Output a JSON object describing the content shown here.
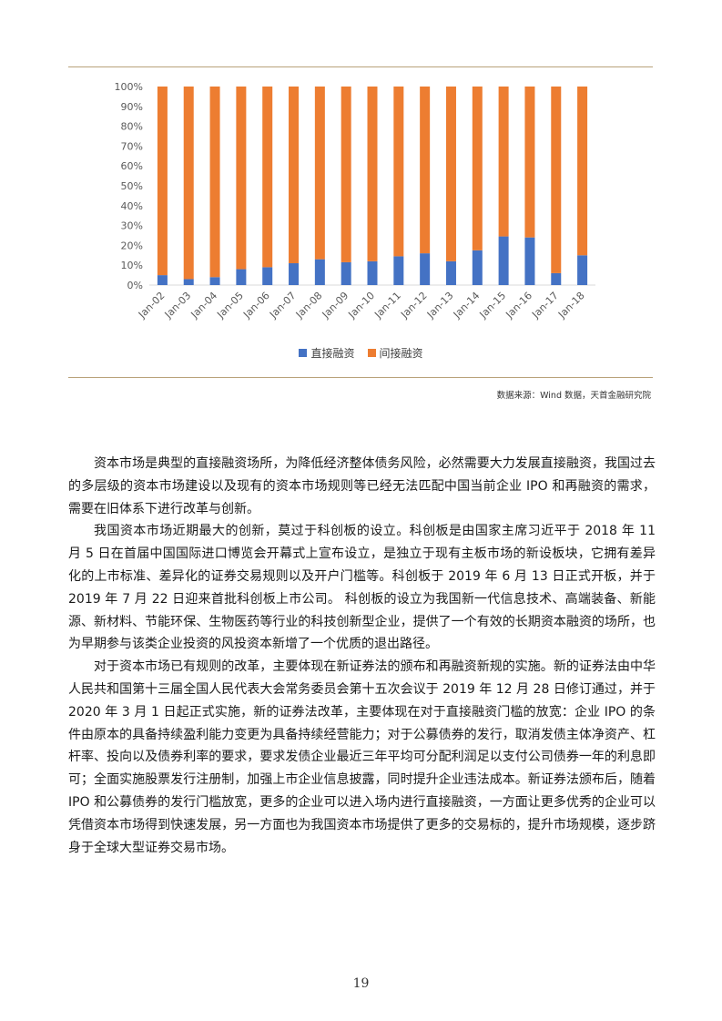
{
  "chart_data": {
    "type": "bar",
    "stacked": true,
    "categories": [
      "Jan-02",
      "Jan-03",
      "Jan-04",
      "Jan-05",
      "Jan-06",
      "Jan-07",
      "Jan-08",
      "Jan-09",
      "Jan-10",
      "Jan-11",
      "Jan-12",
      "Jan-13",
      "Jan-14",
      "Jan-15",
      "Jan-16",
      "Jan-17",
      "Jan-18"
    ],
    "series": [
      {
        "name": "直接融资",
        "color": "#4472c4",
        "values": [
          5,
          3,
          4,
          8,
          9,
          11,
          13,
          11.5,
          12,
          14.5,
          16,
          12,
          17.5,
          24.5,
          24,
          6,
          15
        ]
      },
      {
        "name": "间接融资",
        "color": "#ed7d31",
        "values": [
          95,
          97,
          96,
          92,
          91,
          89,
          87,
          88.5,
          88,
          85.5,
          84,
          88,
          82.5,
          75.5,
          76,
          94,
          85
        ]
      }
    ],
    "yticks": [
      "0%",
      "10%",
      "20%",
      "30%",
      "40%",
      "50%",
      "60%",
      "70%",
      "80%",
      "90%",
      "100%"
    ],
    "ylim": [
      0,
      100
    ],
    "title": "",
    "xlabel": "",
    "ylabel": "",
    "legend_position": "bottom",
    "grid": false
  },
  "source": "数据来源：Wind 数据，天首金融研究院",
  "paragraphs": [
    "资本市场是典型的直接融资场所，为降低经济整体债务风险，必然需要大力发展直接融资，我国过去的多层级的资本市场建设以及现有的资本市场规则等已经无法匹配中国当前企业 IPO 和再融资的需求，需要在旧体系下进行改革与创新。",
    "我国资本市场近期最大的创新，莫过于科创板的设立。科创板是由国家主席习近平于 2018 年 11 月 5 日在首届中国国际进口博览会开幕式上宣布设立，是独立于现有主板市场的新设板块，它拥有差异化的上市标准、差异化的证券交易规则以及开户门槛等。科创板于 2019 年 6 月 13 日正式开板，并于 2019 年 7 月 22 日迎来首批科创板上市公司。 科创板的设立为我国新一代信息技术、高端装备、新能源、新材料、节能环保、生物医药等行业的科技创新型企业，提供了一个有效的长期资本融资的场所，也为早期参与该类企业投资的风投资本新增了一个优质的退出路径。",
    "对于资本市场已有规则的改革，主要体现在新证券法的颁布和再融资新规的实施。新的证券法由中华人民共和国第十三届全国人民代表大会常务委员会第十五次会议于 2019 年 12 月 28 日修订通过，并于 2020 年 3 月 1 日起正式实施，新的证券法改革，主要体现在对于直接融资门槛的放宽：企业 IPO 的条件由原本的具备持续盈利能力变更为具备持续经营能力；对于公募债券的发行，取消发债主体净资产、杠杆率、投向以及债券利率的要求，要求发债企业最近三年平均可分配利润足以支付公司债券一年的利息即可；全面实施股票发行注册制，加强上市企业信息披露，同时提升企业违法成本。新证券法颁布后，随着 IPO 和公募债券的发行门槛放宽，更多的企业可以进入场内进行直接融资，一方面让更多优秀的企业可以凭借资本市场得到快速发展，另一方面也为我国资本市场提供了更多的交易标的，提升市场规模，逐步跻身于全球大型证券交易市场。"
  ],
  "page_number": "19"
}
